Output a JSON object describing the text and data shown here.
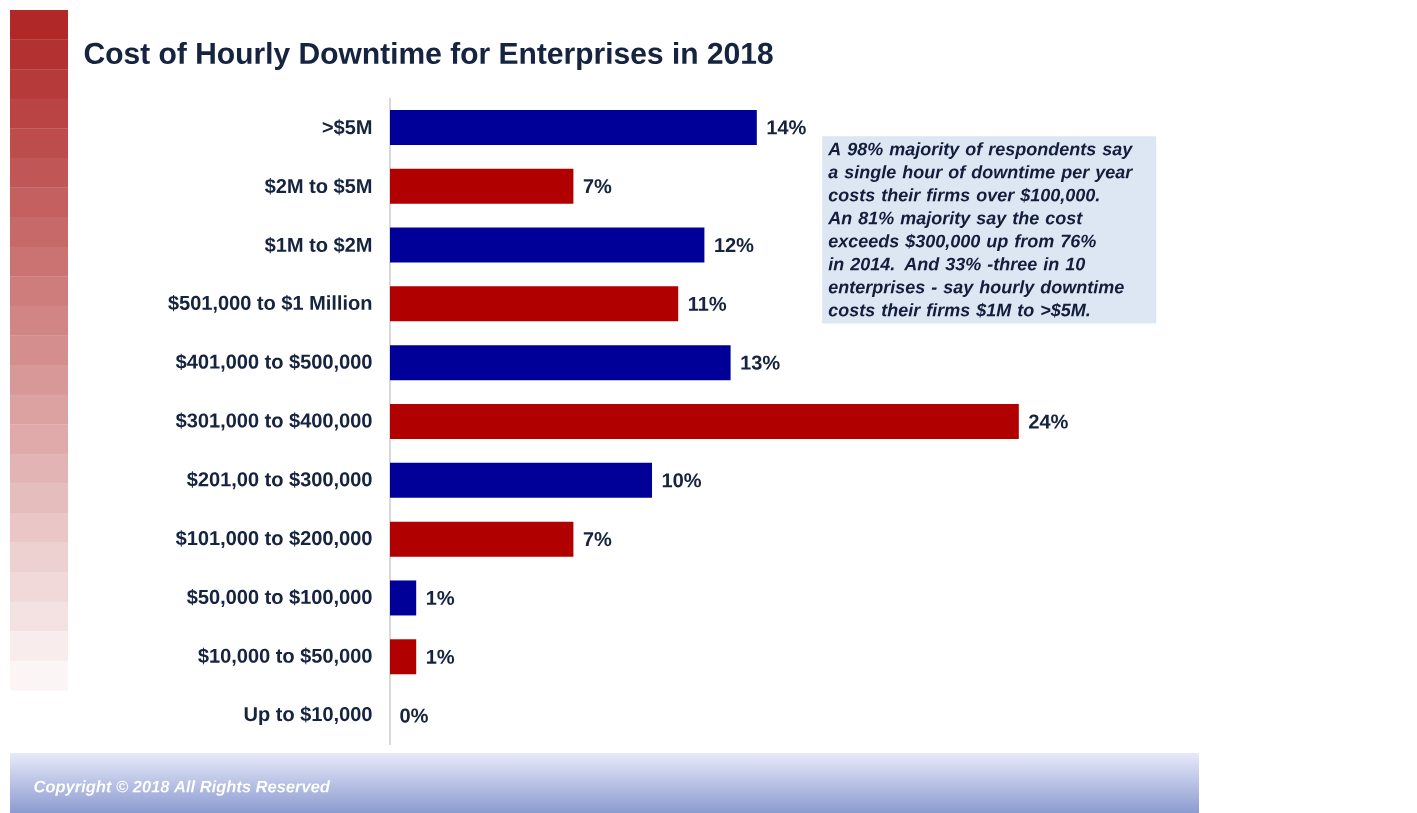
{
  "chart_data": {
    "type": "bar",
    "orientation": "horizontal",
    "title": "Cost of Hourly Downtime for Enterprises in 2018",
    "categories": [
      ">$5M",
      "$2M to $5M",
      "$1M to $2M",
      "$501,000 to $1 Million",
      "$401,000 to $500,000",
      "$301,000 to $400,000",
      "$201,00 to $300,000",
      "$101,000 to $200,000",
      "$50,000 to $100,000",
      "$10,000 to $50,000",
      "Up to $10,000"
    ],
    "values": [
      14,
      7,
      12,
      11,
      13,
      24,
      10,
      7,
      1,
      1,
      0
    ],
    "colors": [
      "#000099",
      "#b00000",
      "#000099",
      "#b00000",
      "#000099",
      "#b00000",
      "#000099",
      "#b00000",
      "#000099",
      "#b00000",
      "#000099"
    ],
    "value_labels": [
      "14%",
      "7%",
      "12%",
      "11%",
      "13%",
      "24%",
      "10%",
      "7%",
      "1%",
      "1%",
      "0%"
    ],
    "annotations": [
      "A 98% majority of respondents say a single hour of downtime per year costs their firms over $100,000.",
      "An 81% majority say the cost exceeds $300,000 up from 76% in 2014. And 33% -three in 10 enterprises - say hourly downtime costs their firms $1M to >$5M.",
      "Copyright © 2018 All Rights Reserved"
    ]
  }
}
